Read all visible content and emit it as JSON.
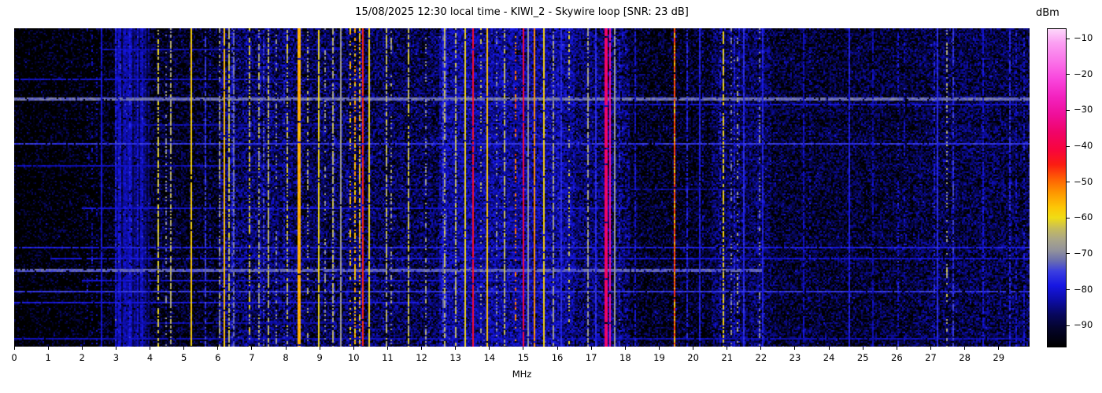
{
  "title": "15/08/2025 12:30 local time - KIWI_2 - Skywire loop [SNR: 23 dB]",
  "station": {
    "date": "15/08/2025",
    "time": "12:30",
    "receiver": "KIWI_2",
    "antenna": "Skywire loop",
    "snr_db": 23
  },
  "xaxis": {
    "label": "MHz",
    "min": 0,
    "max": 29.91,
    "ticks": [
      0,
      1,
      2,
      3,
      4,
      5,
      6,
      7,
      8,
      9,
      10,
      11,
      12,
      13,
      14,
      15,
      16,
      17,
      18,
      19,
      20,
      21,
      22,
      23,
      24,
      25,
      26,
      27,
      28,
      29
    ]
  },
  "colorbar": {
    "unit": "dBm",
    "vmax": -7.1,
    "vmin": -96.1,
    "ticks": [
      -10,
      -20,
      -30,
      -40,
      -50,
      -60,
      -70,
      -80,
      -90
    ]
  },
  "chart_data": {
    "type": "heatmap",
    "title": "15/08/2025 12:30 local time - KIWI_2 - Skywire loop [SNR: 23 dB]",
    "xlabel": "MHz",
    "zlabel": "dBm",
    "x_range_mhz": [
      0,
      29.91
    ],
    "z_range_dbm": [
      -96,
      -7
    ],
    "grid": false,
    "legend": "colorbar-right",
    "colormap_stops": [
      {
        "v": -96,
        "c": "#000000"
      },
      {
        "v": -91,
        "c": "#04042a"
      },
      {
        "v": -87,
        "c": "#07075e"
      },
      {
        "v": -83,
        "c": "#0d0da8"
      },
      {
        "v": -79,
        "c": "#1616e2"
      },
      {
        "v": -75,
        "c": "#3a3ee0"
      },
      {
        "v": -72,
        "c": "#6b6fae"
      },
      {
        "v": -69,
        "c": "#93939b"
      },
      {
        "v": -66,
        "c": "#aaa688"
      },
      {
        "v": -63,
        "c": "#c6bc5c"
      },
      {
        "v": -60,
        "c": "#f0dc14"
      },
      {
        "v": -57,
        "c": "#fdc606"
      },
      {
        "v": -53,
        "c": "#fe9800"
      },
      {
        "v": -49,
        "c": "#fe5f04"
      },
      {
        "v": -45,
        "c": "#fb1c12"
      },
      {
        "v": -41,
        "c": "#f8053c"
      },
      {
        "v": -36,
        "c": "#f00468"
      },
      {
        "v": -31,
        "c": "#ef0f9a"
      },
      {
        "v": -26,
        "c": "#f323c0"
      },
      {
        "v": -21,
        "c": "#f947dd"
      },
      {
        "v": -16,
        "c": "#fa74e9"
      },
      {
        "v": -11,
        "c": "#fb9ff2"
      },
      {
        "v": -7,
        "c": "#fcd7fa"
      }
    ],
    "noise_profile": [
      {
        "f1": 0.0,
        "f2": 0.6,
        "p": 0.3,
        "lo": -95,
        "hi": -87
      },
      {
        "f1": 0.6,
        "f2": 2.5,
        "p": 0.36,
        "lo": -95,
        "hi": -86
      },
      {
        "f1": 2.5,
        "f2": 2.95,
        "p": 0.45,
        "lo": -94,
        "hi": -85
      },
      {
        "f1": 2.95,
        "f2": 3.95,
        "p": 0.95,
        "lo": -90,
        "hi": -80,
        "smear": true
      },
      {
        "f1": 3.95,
        "f2": 6.0,
        "p": 0.55,
        "lo": -93,
        "hi": -84
      },
      {
        "f1": 6.0,
        "f2": 8.5,
        "p": 0.8,
        "lo": -92,
        "hi": -80
      },
      {
        "f1": 8.5,
        "f2": 12.5,
        "p": 0.75,
        "lo": -92,
        "hi": -81
      },
      {
        "f1": 12.5,
        "f2": 16.5,
        "p": 0.93,
        "lo": -89,
        "hi": -78
      },
      {
        "f1": 16.5,
        "f2": 18.1,
        "p": 0.8,
        "lo": -91,
        "hi": -80
      },
      {
        "f1": 18.1,
        "f2": 20.5,
        "p": 0.55,
        "lo": -93,
        "hi": -84
      },
      {
        "f1": 20.5,
        "f2": 22.3,
        "p": 0.8,
        "lo": -92,
        "hi": -81
      },
      {
        "f1": 22.3,
        "f2": 26.5,
        "p": 0.65,
        "lo": -93,
        "hi": -83
      },
      {
        "f1": 26.5,
        "f2": 29.91,
        "p": 0.72,
        "lo": -92,
        "hi": -82
      }
    ],
    "signals": [
      {
        "f": 2.54,
        "w": 1,
        "level": -80,
        "pattern": "solid"
      },
      {
        "f": 4.23,
        "w": 2,
        "level": -62,
        "pattern": "dashed"
      },
      {
        "f": 4.47,
        "w": 1,
        "level": -70,
        "pattern": "dotted"
      },
      {
        "f": 4.62,
        "w": 1,
        "level": -65,
        "pattern": "dashed"
      },
      {
        "f": 5.2,
        "w": 2,
        "level": -58,
        "pattern": "solid"
      },
      {
        "f": 5.6,
        "w": 1,
        "level": -76,
        "pattern": "dashed"
      },
      {
        "f": 6.07,
        "w": 2,
        "level": -68,
        "pattern": "patchy"
      },
      {
        "f": 6.17,
        "w": 2,
        "level": -56,
        "pattern": "solid"
      },
      {
        "f": 6.3,
        "w": 1,
        "level": -63,
        "pattern": "dashed"
      },
      {
        "f": 6.45,
        "w": 1,
        "level": -72,
        "pattern": "dashed"
      },
      {
        "f": 6.95,
        "w": 2,
        "level": -63,
        "pattern": "patchy"
      },
      {
        "f": 7.2,
        "w": 2,
        "level": -66,
        "pattern": "patchy"
      },
      {
        "f": 7.35,
        "w": 1,
        "level": -76,
        "pattern": "patchy"
      },
      {
        "f": 7.46,
        "w": 1,
        "level": -64,
        "pattern": "dashed"
      },
      {
        "f": 7.7,
        "w": 1,
        "level": -69,
        "pattern": "dotted"
      },
      {
        "f": 8.05,
        "w": 2,
        "level": -64,
        "pattern": "patchy"
      },
      {
        "f": 8.38,
        "w": 3,
        "level": -55,
        "pattern": "solid"
      },
      {
        "f": 8.62,
        "w": 1,
        "level": -66,
        "pattern": "dotted"
      },
      {
        "f": 8.95,
        "w": 2,
        "level": -60,
        "pattern": "solid"
      },
      {
        "f": 9.15,
        "w": 1,
        "level": -69,
        "pattern": "dotted"
      },
      {
        "f": 9.4,
        "w": 1,
        "level": -65,
        "pattern": "dashed"
      },
      {
        "f": 9.62,
        "w": 2,
        "level": -68,
        "pattern": "solid"
      },
      {
        "f": 9.9,
        "w": 1,
        "level": -57,
        "pattern": "dotted"
      },
      {
        "f": 10.05,
        "w": 2,
        "level": -56,
        "pattern": "patchy"
      },
      {
        "f": 10.16,
        "w": 2,
        "level": -58,
        "pattern": "patchy"
      },
      {
        "f": 10.28,
        "w": 2,
        "level": -45,
        "pattern": "solid"
      },
      {
        "f": 10.45,
        "w": 1,
        "level": -60,
        "pattern": "solid"
      },
      {
        "f": 10.94,
        "w": 1,
        "level": -64,
        "pattern": "dashed"
      },
      {
        "f": 11.1,
        "w": 1,
        "level": -68,
        "pattern": "dotted"
      },
      {
        "f": 11.6,
        "w": 1,
        "level": -63,
        "pattern": "dashed"
      },
      {
        "f": 12.1,
        "w": 1,
        "level": -68,
        "pattern": "dotted"
      },
      {
        "f": 12.65,
        "w": 1,
        "level": -64,
        "pattern": "dashed"
      },
      {
        "f": 13.0,
        "w": 1,
        "level": -64,
        "pattern": "dashed"
      },
      {
        "f": 13.28,
        "w": 2,
        "level": -60,
        "pattern": "solid"
      },
      {
        "f": 13.51,
        "w": 2,
        "level": -42,
        "pattern": "solid"
      },
      {
        "f": 13.75,
        "w": 1,
        "level": -65,
        "pattern": "dotted"
      },
      {
        "f": 13.94,
        "w": 2,
        "level": -57,
        "pattern": "solid"
      },
      {
        "f": 14.2,
        "w": 1,
        "level": -69,
        "pattern": "dotted"
      },
      {
        "f": 14.45,
        "w": 1,
        "level": -64,
        "pattern": "dashed"
      },
      {
        "f": 14.78,
        "w": 1,
        "level": -50,
        "pattern": "dotted"
      },
      {
        "f": 15.02,
        "w": 2,
        "level": -40,
        "pattern": "solid"
      },
      {
        "f": 15.13,
        "w": 1,
        "level": -68,
        "pattern": "solid"
      },
      {
        "f": 15.3,
        "w": 1,
        "level": -52,
        "pattern": "solid"
      },
      {
        "f": 15.62,
        "w": 2,
        "level": -59,
        "pattern": "solid"
      },
      {
        "f": 15.85,
        "w": 1,
        "level": -67,
        "pattern": "dashed"
      },
      {
        "f": 16.1,
        "w": 2,
        "level": -77,
        "pattern": "solid"
      },
      {
        "f": 16.35,
        "w": 1,
        "level": -63,
        "pattern": "dotted"
      },
      {
        "f": 16.9,
        "w": 1,
        "level": -67,
        "pattern": "dashed"
      },
      {
        "f": 17.1,
        "w": 1,
        "level": -77,
        "pattern": "solid"
      },
      {
        "f": 17.44,
        "w": 3,
        "level": -36,
        "pattern": "solid"
      },
      {
        "f": 17.56,
        "w": 2,
        "level": -30,
        "pattern": "solid"
      },
      {
        "f": 17.7,
        "w": 1,
        "level": -68,
        "pattern": "solid"
      },
      {
        "f": 18.3,
        "w": 1,
        "level": -80,
        "pattern": "dashed"
      },
      {
        "f": 19.44,
        "w": 1,
        "level": -47,
        "pattern": "solid"
      },
      {
        "f": 19.44,
        "w": 2,
        "level": -56,
        "pattern": "dotted"
      },
      {
        "f": 19.8,
        "w": 1,
        "level": -78,
        "pattern": "dashed"
      },
      {
        "f": 20.2,
        "w": 1,
        "level": -78,
        "pattern": "solid"
      },
      {
        "f": 20.88,
        "w": 2,
        "level": -60,
        "pattern": "dashed"
      },
      {
        "f": 21.13,
        "w": 1,
        "level": -70,
        "pattern": "dotted"
      },
      {
        "f": 21.3,
        "w": 2,
        "level": -67,
        "pattern": "dotted"
      },
      {
        "f": 21.5,
        "w": 1,
        "level": -77,
        "pattern": "solid"
      },
      {
        "f": 21.95,
        "w": 1,
        "level": -70,
        "pattern": "dotted"
      },
      {
        "f": 22.05,
        "w": 1,
        "level": -78,
        "pattern": "solid"
      },
      {
        "f": 23.25,
        "w": 1,
        "level": -81,
        "pattern": "dashed"
      },
      {
        "f": 24.6,
        "w": 1,
        "level": -78,
        "pattern": "solid"
      },
      {
        "f": 25.3,
        "w": 1,
        "level": -82,
        "pattern": "dashed"
      },
      {
        "f": 26.2,
        "w": 1,
        "level": -81,
        "pattern": "dotted"
      },
      {
        "f": 27.2,
        "w": 1,
        "level": -77,
        "pattern": "solid"
      },
      {
        "f": 27.48,
        "w": 2,
        "level": -66,
        "pattern": "dotted"
      },
      {
        "f": 27.65,
        "w": 1,
        "level": -76,
        "pattern": "dashed"
      },
      {
        "f": 28.55,
        "w": 1,
        "level": -80,
        "pattern": "dashed"
      },
      {
        "f": 29.3,
        "w": 1,
        "level": -78,
        "pattern": "dashed"
      }
    ],
    "horizontal_lines": [
      {
        "y": 0.065,
        "f1": 2.5,
        "f2": 9.5,
        "level": -82,
        "t": 1
      },
      {
        "y": 0.16,
        "f1": 0,
        "f2": 10.5,
        "level": -81,
        "t": 1
      },
      {
        "y": 0.215,
        "f1": 0,
        "f2": 29.91,
        "level": -72,
        "t": 2
      },
      {
        "y": 0.235,
        "f1": 13,
        "f2": 29.91,
        "level": -80,
        "t": 1
      },
      {
        "y": 0.3,
        "f1": 3,
        "f2": 9.5,
        "level": -83,
        "t": 1
      },
      {
        "y": 0.36,
        "f1": 0,
        "f2": 29.91,
        "level": -76,
        "t": 1
      },
      {
        "y": 0.43,
        "f1": 0,
        "f2": 8,
        "level": -82,
        "t": 1
      },
      {
        "y": 0.5,
        "f1": 11,
        "f2": 22,
        "level": -84,
        "t": 1
      },
      {
        "y": 0.56,
        "f1": 2,
        "f2": 18,
        "level": -80,
        "t": 1
      },
      {
        "y": 0.685,
        "f1": 0,
        "f2": 29.91,
        "level": -78,
        "t": 1
      },
      {
        "y": 0.72,
        "f1": 1,
        "f2": 29.91,
        "level": -80,
        "t": 1
      },
      {
        "y": 0.755,
        "f1": 0,
        "f2": 22,
        "level": -73,
        "t": 2
      },
      {
        "y": 0.79,
        "f1": 2,
        "f2": 16,
        "level": -80,
        "t": 1
      },
      {
        "y": 0.825,
        "f1": 0,
        "f2": 29.91,
        "level": -76,
        "t": 1
      },
      {
        "y": 0.855,
        "f1": 0,
        "f2": 12,
        "level": -79,
        "t": 1
      },
      {
        "y": 0.92,
        "f1": 3,
        "f2": 10,
        "level": -83,
        "t": 1
      },
      {
        "y": 0.97,
        "f1": 0,
        "f2": 29.91,
        "level": -82,
        "t": 1
      }
    ]
  }
}
